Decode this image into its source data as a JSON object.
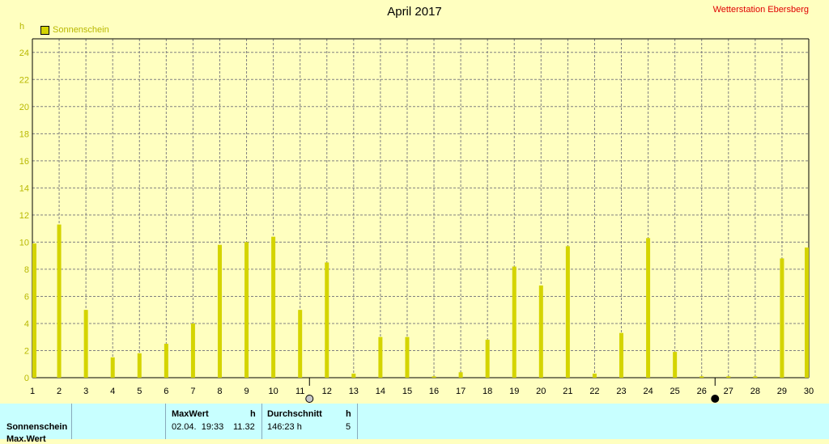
{
  "header": {
    "title": "April 2017",
    "station": "Wetterstation Ebersberg",
    "unit": "h"
  },
  "legend": {
    "label": "Sonnenschein",
    "color": "#d4d400"
  },
  "chart_data": {
    "type": "bar",
    "title": "April 2017",
    "ylabel": "h",
    "ylim": [
      0,
      25
    ],
    "yticks": [
      0,
      2,
      4,
      6,
      8,
      10,
      12,
      14,
      16,
      18,
      20,
      22,
      24
    ],
    "grid": true,
    "legend_position": "top-left",
    "categories": [
      "1",
      "2",
      "3",
      "4",
      "5",
      "6",
      "7",
      "8",
      "9",
      "10",
      "11",
      "12",
      "13",
      "14",
      "15",
      "16",
      "17",
      "18",
      "19",
      "20",
      "21",
      "22",
      "23",
      "24",
      "25",
      "26",
      "27",
      "28",
      "29",
      "30"
    ],
    "series": [
      {
        "name": "Sonnenschein",
        "color": "#d4d400",
        "values": [
          9.9,
          11.3,
          5.0,
          1.5,
          1.8,
          2.5,
          4.0,
          9.8,
          10.0,
          10.4,
          5.0,
          8.5,
          0.3,
          3.0,
          3.0,
          0.1,
          0.4,
          2.8,
          8.2,
          6.8,
          9.7,
          0.3,
          3.3,
          10.3,
          1.9,
          0.1,
          0.1,
          0.1,
          8.8,
          9.6
        ]
      }
    ],
    "moon_markers": [
      {
        "day": 11.35,
        "phase": "full-moon"
      },
      {
        "day": 26.5,
        "phase": "new-moon"
      }
    ]
  },
  "table": {
    "row_label": "Sonnenschein",
    "row_label2": "Max.Wert",
    "max_header": "MaxWert",
    "max_unit": "h",
    "max_date": "02.04.  19:33",
    "max_value": "11.32",
    "avg_header": "Durchschnitt",
    "avg_unit": "h",
    "avg_value": "146:23 h",
    "avg_count": "5"
  }
}
